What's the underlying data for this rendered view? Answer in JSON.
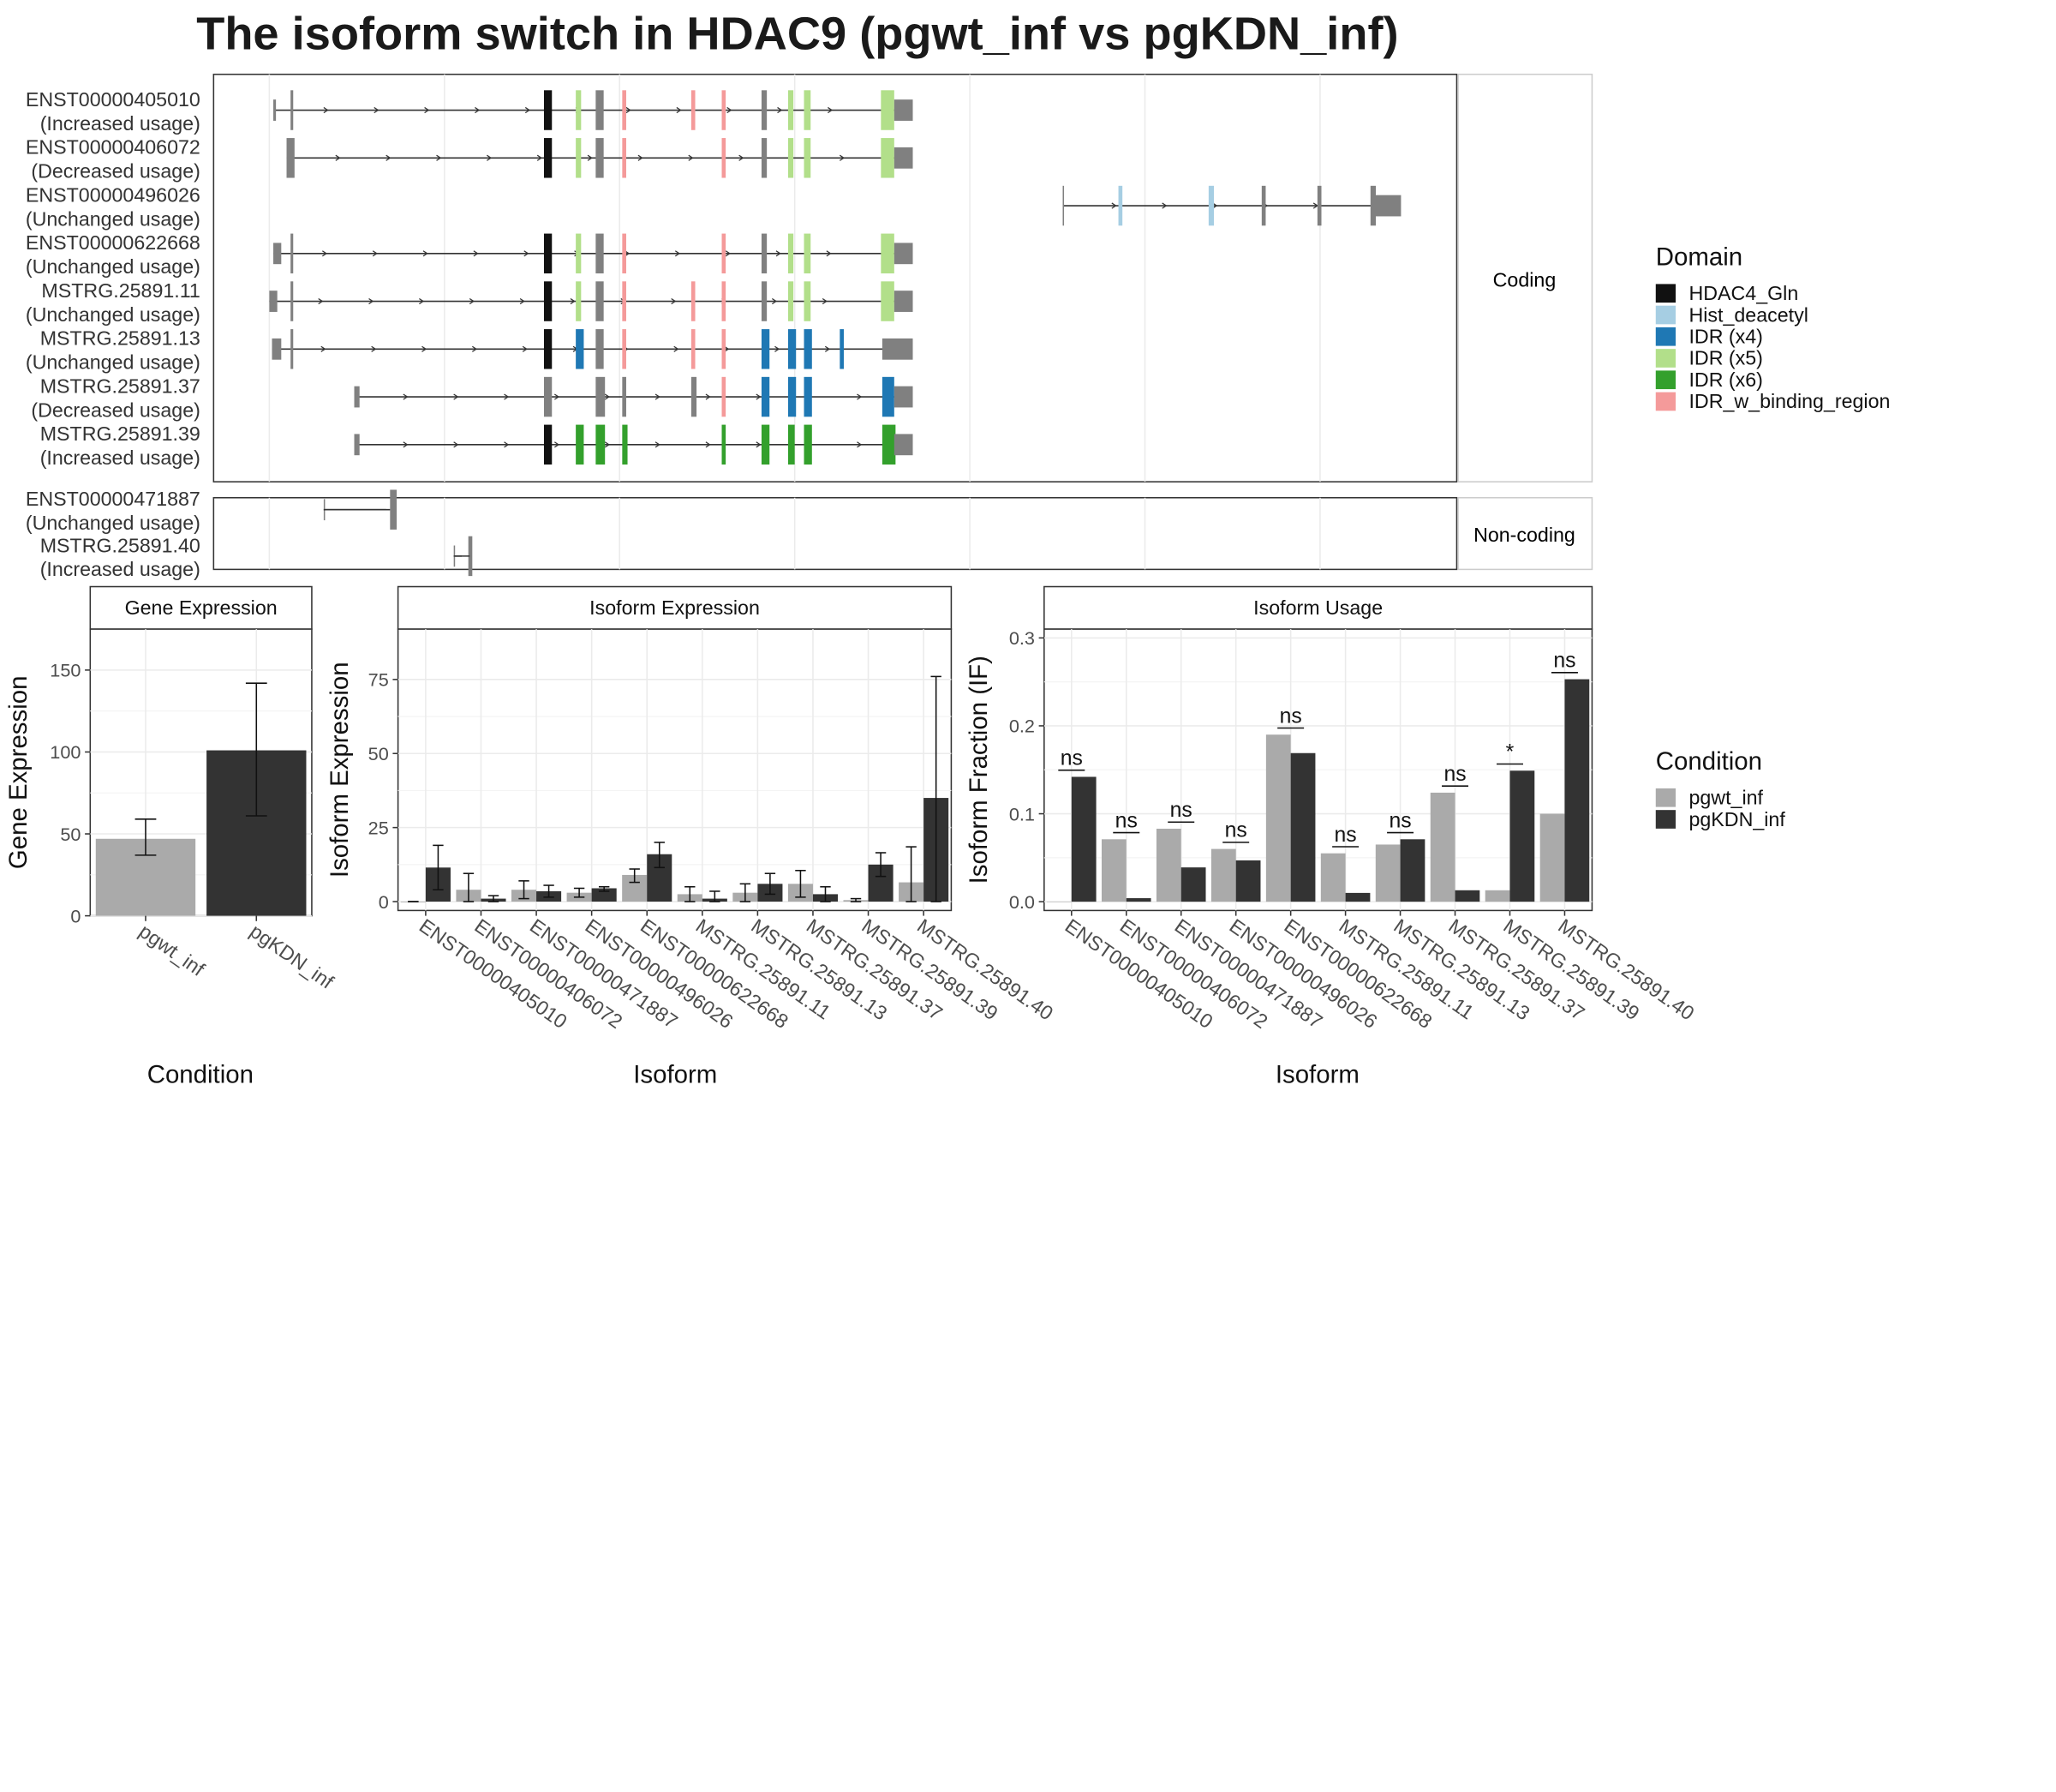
{
  "title": "The isoform switch in HDAC9 (pgwt_inf vs pgKDN_inf)",
  "colors": {
    "domain": {
      "HDAC4_Gln": "#111111",
      "Hist_deacetyl": "#a6cee3",
      "IDR (x4)": "#1f78b4",
      "IDR (x5)": "#b2df8a",
      "IDR (x6)": "#33a02c",
      "IDR_w_binding_region": "#f49a9a"
    },
    "pgwt_inf": "#aaaaaa",
    "pgKDN_inf": "#333333",
    "exon": "#808080",
    "grid": "#ebebeb"
  },
  "transcripts": {
    "coding_strip": "Coding",
    "noncoding_strip": "Non-coding",
    "coding": [
      {
        "id": "ENST00000405010",
        "usage": "(Increased usage)"
      },
      {
        "id": "ENST00000406072",
        "usage": "(Decreased usage)"
      },
      {
        "id": "ENST00000496026",
        "usage": "(Unchanged usage)"
      },
      {
        "id": "ENST00000622668",
        "usage": "(Unchanged usage)"
      },
      {
        "id": "MSTRG.25891.11",
        "usage": "(Unchanged usage)"
      },
      {
        "id": "MSTRG.25891.13",
        "usage": "(Unchanged usage)"
      },
      {
        "id": "MSTRG.25891.37",
        "usage": "(Decreased usage)"
      },
      {
        "id": "MSTRG.25891.39",
        "usage": "(Increased usage)"
      }
    ],
    "noncoding": [
      {
        "id": "ENST00000471887",
        "usage": "(Unchanged usage)"
      },
      {
        "id": "MSTRG.25891.40",
        "usage": "(Increased usage)"
      }
    ]
  },
  "legend": {
    "domain_title": "Domain",
    "domain_items": [
      "HDAC4_Gln",
      "Hist_deacetyl",
      "IDR (x4)",
      "IDR (x5)",
      "IDR (x6)",
      "IDR_w_binding_region"
    ],
    "condition_title": "Condition",
    "condition_items": [
      "pgwt_inf",
      "pgKDN_inf"
    ]
  },
  "chart_data": [
    {
      "type": "bar",
      "title": "Gene Expression",
      "xlabel": "Condition",
      "ylabel": "Gene Expression",
      "ylim": [
        0,
        175
      ],
      "yticks": [
        0,
        50,
        100,
        150
      ],
      "categories": [
        "pgwt_inf",
        "pgKDN_inf"
      ],
      "values": [
        47,
        101
      ],
      "error_low": [
        37,
        61
      ],
      "error_high": [
        59,
        142
      ]
    },
    {
      "type": "bar",
      "title": "Isoform Expression",
      "xlabel": "Isoform",
      "ylabel": "Isoform Expression",
      "ylim": [
        -3,
        92
      ],
      "yticks": [
        0,
        25,
        50,
        75
      ],
      "categories": [
        "ENST00000405010",
        "ENST00000406072",
        "ENST00000471887",
        "ENST00000496026",
        "ENST00000622668",
        "MSTRG.25891.11",
        "MSTRG.25891.13",
        "MSTRG.25891.37",
        "MSTRG.25891.39",
        "MSTRG.25891.40"
      ],
      "series": [
        {
          "name": "pgwt_inf",
          "values": [
            0,
            4,
            4,
            3,
            9,
            2.5,
            3,
            6,
            0.5,
            6.5
          ],
          "error_low": [
            0,
            0,
            1,
            1.5,
            6.5,
            0,
            0,
            1.5,
            0,
            0
          ],
          "error_high": [
            0,
            9.5,
            7,
            4.5,
            11,
            5,
            6,
            10.5,
            1,
            18.5
          ]
        },
        {
          "name": "pgKDN_inf",
          "values": [
            11.5,
            1,
            3.5,
            4.5,
            16,
            1,
            6,
            2.5,
            12.5,
            35
          ],
          "error_low": [
            4,
            0,
            1.5,
            3.5,
            11.5,
            0,
            2.5,
            0,
            8.5,
            0
          ],
          "error_high": [
            19,
            2,
            5.5,
            5,
            20,
            3.5,
            9.5,
            5,
            16.5,
            76
          ]
        }
      ]
    },
    {
      "type": "bar",
      "title": "Isoform Usage",
      "xlabel": "Isoform",
      "ylabel": "Isoform Fraction (IF)",
      "ylim": [
        -0.01,
        0.31
      ],
      "yticks": [
        0.0,
        0.1,
        0.2,
        0.3
      ],
      "categories": [
        "ENST00000405010",
        "ENST00000406072",
        "ENST00000471887",
        "ENST00000496026",
        "ENST00000622668",
        "MSTRG.25891.11",
        "MSTRG.25891.13",
        "MSTRG.25891.37",
        "MSTRG.25891.39",
        "MSTRG.25891.40"
      ],
      "series": [
        {
          "name": "pgwt_inf",
          "values": [
            0.0,
            0.071,
            0.083,
            0.06,
            0.19,
            0.055,
            0.065,
            0.124,
            0.013,
            0.1
          ]
        },
        {
          "name": "pgKDN_inf",
          "values": [
            0.142,
            0.004,
            0.039,
            0.047,
            0.169,
            0.01,
            0.071,
            0.013,
            0.149,
            0.253
          ]
        }
      ],
      "annotations": [
        "ns",
        "ns",
        "ns",
        "ns",
        "ns",
        "ns",
        "ns",
        "ns",
        "*",
        "ns"
      ]
    }
  ]
}
